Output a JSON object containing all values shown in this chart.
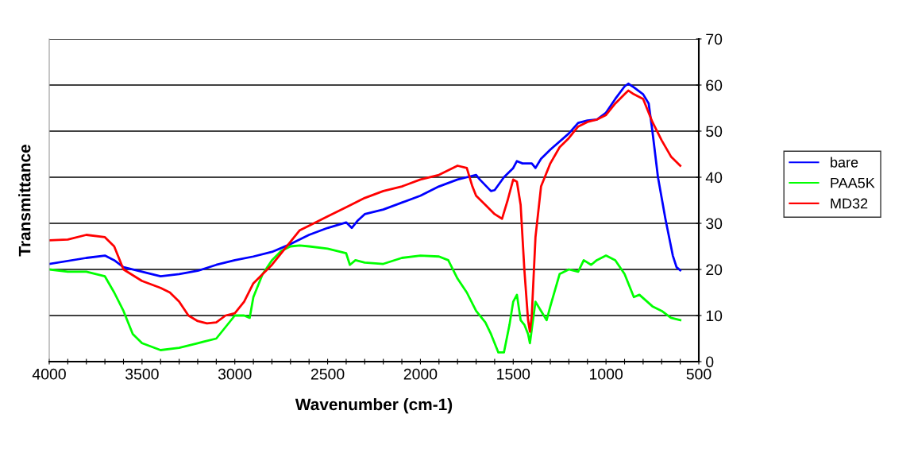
{
  "chart_data": {
    "type": "line",
    "xlabel": "Wavenumber (cm-1)",
    "ylabel": "Transmittance",
    "xlim": [
      4000,
      500
    ],
    "ylim": [
      0,
      70
    ],
    "xticks": [
      4000,
      {
        "value": 3900,
        "label": null
      },
      {
        "value": 3800,
        "label": null
      },
      {
        "value": 3700,
        "label": null
      },
      {
        "value": 3600,
        "label": null
      },
      3500,
      {
        "value": 3400,
        "label": null
      },
      {
        "value": 3300,
        "label": null
      },
      {
        "value": 3200,
        "label": null
      },
      {
        "value": 3100,
        "label": null
      },
      3000,
      {
        "value": 2900,
        "label": null
      },
      {
        "value": 2800,
        "label": null
      },
      {
        "value": 2700,
        "label": null
      },
      {
        "value": 2600,
        "label": null
      },
      2500,
      {
        "value": 2400,
        "label": null
      },
      {
        "value": 2300,
        "label": null
      },
      {
        "value": 2200,
        "label": null
      },
      {
        "value": 2100,
        "label": null
      },
      2000,
      {
        "value": 1900,
        "label": null
      },
      {
        "value": 1800,
        "label": null
      },
      {
        "value": 1700,
        "label": null
      },
      {
        "value": 1600,
        "label": null
      },
      1500,
      {
        "value": 1400,
        "label": null
      },
      {
        "value": 1300,
        "label": null
      },
      {
        "value": 1200,
        "label": null
      },
      {
        "value": 1100,
        "label": null
      },
      1000,
      {
        "value": 900,
        "label": null
      },
      {
        "value": 800,
        "label": null
      },
      {
        "value": 700,
        "label": null
      },
      {
        "value": 600,
        "label": null
      },
      500
    ],
    "yticks": [
      0,
      10,
      20,
      30,
      40,
      50,
      60,
      70
    ],
    "grid": "y",
    "legend": "right",
    "marker": "none",
    "line_style": "solid",
    "series": [
      {
        "name": "bare",
        "color": "#0000ff",
        "x": [
          4000,
          3800,
          3700,
          3650,
          3600,
          3500,
          3400,
          3300,
          3200,
          3100,
          3000,
          2900,
          2800,
          2700,
          2600,
          2500,
          2400,
          2370,
          2340,
          2300,
          2200,
          2100,
          2000,
          1900,
          1800,
          1750,
          1700,
          1680,
          1620,
          1600,
          1550,
          1500,
          1480,
          1450,
          1400,
          1380,
          1350,
          1300,
          1200,
          1150,
          1100,
          1050,
          1000,
          950,
          900,
          880,
          850,
          800,
          770,
          750,
          720,
          680,
          640,
          620,
          600
        ],
        "values": [
          21.2,
          22.5,
          23,
          22,
          20.5,
          19.5,
          18.5,
          19,
          19.7,
          21,
          22,
          22.8,
          23.8,
          25.5,
          27.5,
          29,
          30.2,
          29,
          30.5,
          32,
          33,
          34.5,
          36,
          38,
          39.5,
          40,
          40.5,
          39.5,
          37,
          37.2,
          40,
          42,
          43.5,
          43,
          43,
          42,
          44,
          46,
          49.5,
          51.8,
          52.3,
          52.5,
          54,
          57,
          59.7,
          60.3,
          59.5,
          58,
          56,
          50,
          40,
          31,
          23,
          20.5,
          19.8
        ]
      },
      {
        "name": "PAA5K",
        "color": "#00ff00",
        "x": [
          4000,
          3900,
          3800,
          3700,
          3650,
          3600,
          3550,
          3500,
          3400,
          3300,
          3200,
          3100,
          3050,
          3000,
          2950,
          2920,
          2900,
          2850,
          2800,
          2750,
          2700,
          2650,
          2600,
          2500,
          2400,
          2380,
          2350,
          2300,
          2200,
          2100,
          2000,
          1900,
          1850,
          1800,
          1750,
          1700,
          1650,
          1620,
          1580,
          1550,
          1520,
          1500,
          1480,
          1460,
          1440,
          1420,
          1410,
          1400,
          1380,
          1350,
          1320,
          1300,
          1250,
          1200,
          1150,
          1120,
          1080,
          1050,
          1000,
          950,
          900,
          850,
          820,
          750,
          700,
          650,
          600
        ],
        "values": [
          20,
          19.5,
          19.5,
          18.5,
          15,
          11,
          6,
          4,
          2.5,
          3,
          4,
          5,
          7.5,
          10,
          10,
          9.5,
          14,
          19,
          22,
          24,
          25,
          25.2,
          25,
          24.5,
          23.5,
          21,
          22,
          21.5,
          21.2,
          22.5,
          23,
          22.8,
          22,
          18,
          15,
          11,
          8.5,
          6,
          2,
          2,
          8,
          13,
          14.5,
          9,
          8,
          6,
          4,
          7,
          13,
          11,
          9,
          12,
          19,
          20,
          19.5,
          22,
          21,
          22,
          23,
          22,
          19,
          14,
          14.5,
          12,
          11,
          9.5,
          9
        ]
      },
      {
        "name": "MD32",
        "color": "#ff0000",
        "x": [
          4000,
          3900,
          3800,
          3700,
          3650,
          3600,
          3500,
          3400,
          3350,
          3300,
          3250,
          3200,
          3150,
          3100,
          3050,
          3000,
          2950,
          2900,
          2800,
          2700,
          2650,
          2600,
          2500,
          2400,
          2300,
          2200,
          2100,
          2000,
          1900,
          1800,
          1750,
          1720,
          1700,
          1650,
          1600,
          1560,
          1530,
          1500,
          1480,
          1460,
          1440,
          1420,
          1410,
          1400,
          1380,
          1350,
          1300,
          1250,
          1200,
          1150,
          1100,
          1050,
          1000,
          950,
          900,
          880,
          850,
          800,
          750,
          700,
          650,
          600
        ],
        "values": [
          26.3,
          26.5,
          27.5,
          27,
          25,
          20,
          17.5,
          16,
          15,
          13,
          10,
          8.8,
          8.3,
          8.5,
          10,
          10.5,
          13,
          17,
          21,
          26,
          28.5,
          29.5,
          31.5,
          33.5,
          35.5,
          37,
          38,
          39.5,
          40.5,
          42.5,
          42,
          38,
          36,
          34,
          32,
          31,
          35,
          39.5,
          39,
          34,
          20,
          9,
          6.5,
          10,
          27,
          38,
          43,
          46.5,
          48.5,
          51,
          52,
          52.5,
          53.5,
          56,
          58,
          58.8,
          58,
          57,
          52,
          48,
          44.5,
          42.5
        ]
      }
    ]
  }
}
